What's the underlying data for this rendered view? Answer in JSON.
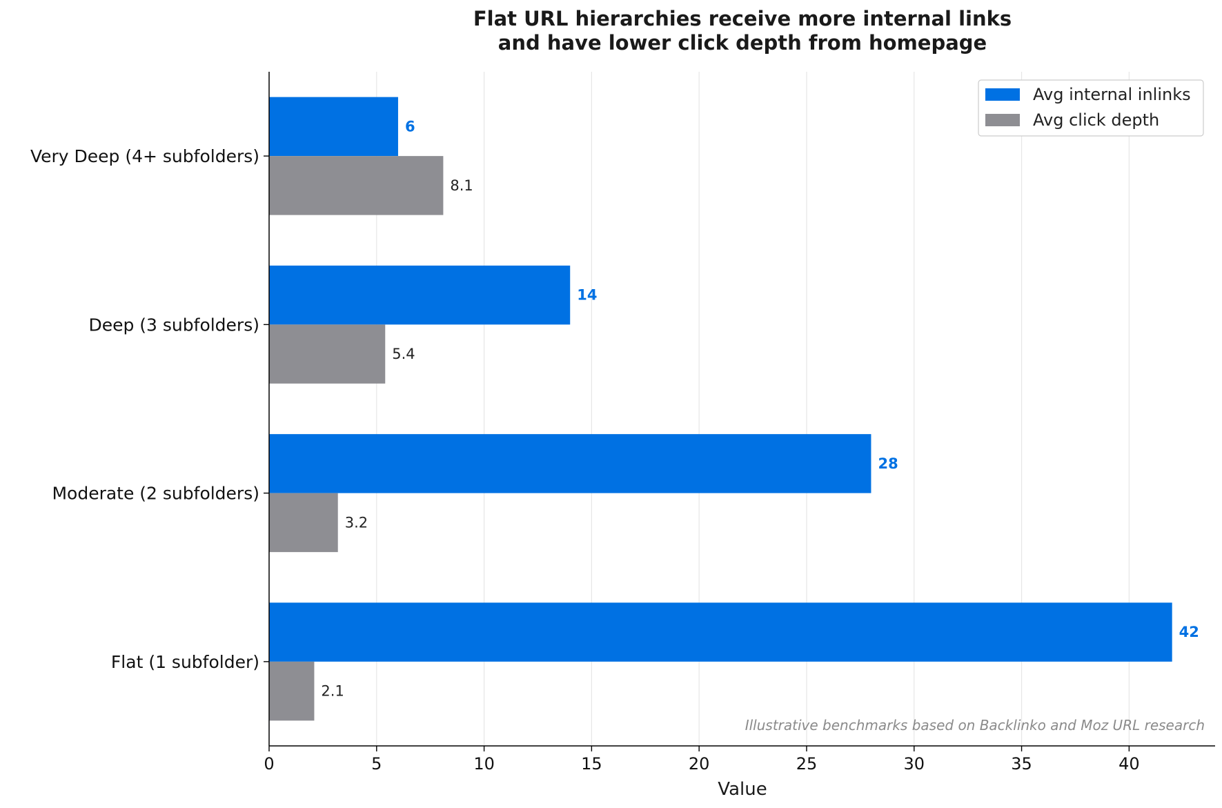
{
  "chart_data": {
    "type": "bar",
    "orientation": "horizontal",
    "title_lines": [
      "Flat URL hierarchies receive more internal links",
      "and have lower click depth from homepage"
    ],
    "xlabel": "Value",
    "ylabel": "",
    "xlim": [
      0,
      44
    ],
    "xticks": [
      0,
      5,
      10,
      15,
      20,
      25,
      30,
      35,
      40
    ],
    "categories": [
      "Very Deep (4+ subfolders)",
      "Deep (3 subfolders)",
      "Moderate (2 subfolders)",
      "Flat (1 subfolder)"
    ],
    "series": [
      {
        "name": "Avg internal inlinks",
        "values": [
          6,
          14,
          28,
          42
        ],
        "color": "#0071e3",
        "labels": [
          "6",
          "14",
          "28",
          "42"
        ]
      },
      {
        "name": "Avg click depth",
        "values": [
          8.1,
          5.4,
          3.2,
          2.1
        ],
        "color": "#8e8e93",
        "labels": [
          "8.1",
          "5.4",
          "3.2",
          "2.1"
        ]
      }
    ],
    "grid": "vertical",
    "legend_position": "top-right",
    "annotation": "Illustrative benchmarks based on Backlinko and Moz URL research"
  }
}
